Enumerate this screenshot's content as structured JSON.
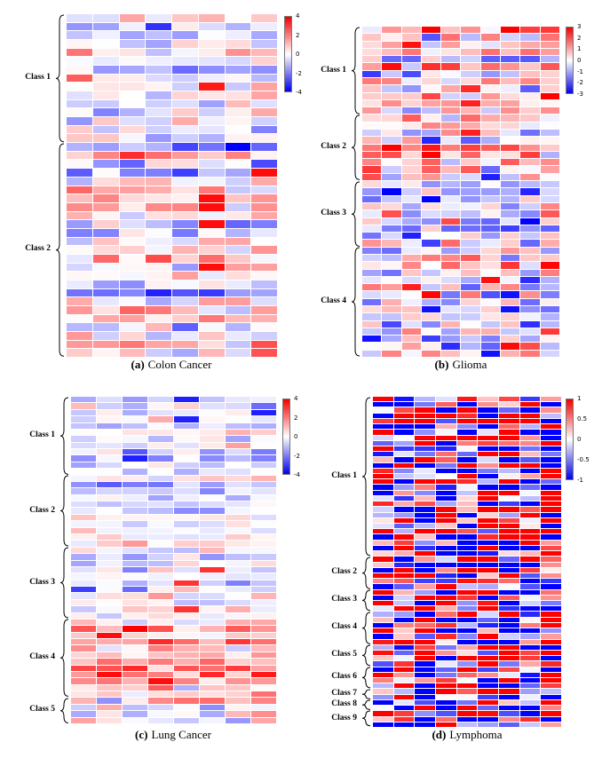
{
  "figure": {
    "background": "#ffffff",
    "colormap_positive": "#ff0000",
    "colormap_zero": "#ffffff",
    "colormap_negative": "#0000ff"
  },
  "chart_data": [
    {
      "type": "heatmap",
      "id": "a",
      "seed": 101,
      "caption_prefix": "(a)",
      "caption_title": "Colon Cancer",
      "columns": 8,
      "colormap": "blue-white-red",
      "value_range": [
        -4,
        4
      ],
      "colorbar_ticks": [
        "4",
        "2",
        "0",
        "-2",
        "-4"
      ],
      "classes": [
        {
          "label": "Class 1",
          "rows": 15,
          "bias": 0.0,
          "sigma": 0.85,
          "row_sigma": 0.55,
          "hot_p": 0.02,
          "hot_val": 3.6
        },
        {
          "label": "Class 2",
          "rows": 25,
          "bias": 0.15,
          "sigma": 0.95,
          "row_sigma": 0.95,
          "hot_p": 0.04,
          "hot_val": 3.8
        }
      ]
    },
    {
      "type": "heatmap",
      "id": "b",
      "seed": 202,
      "caption_prefix": "(b)",
      "caption_title": "Glioma",
      "columns": 10,
      "colormap": "blue-white-red",
      "value_range": [
        -3,
        3
      ],
      "colorbar_ticks": [
        "3",
        "2",
        "1",
        "0",
        "-1",
        "-2",
        "-3"
      ],
      "classes": [
        {
          "label": "Class 1",
          "rows": 12,
          "bias": 0.6,
          "sigma": 1.1,
          "row_sigma": 0.55,
          "hot_p": 0,
          "hot_val": 0
        },
        {
          "label": "Class 2",
          "rows": 9,
          "bias": 0.4,
          "sigma": 1.2,
          "row_sigma": 0.5,
          "hot_p": 0,
          "hot_val": 0
        },
        {
          "label": "Class 3",
          "rows": 9,
          "bias": -0.5,
          "sigma": 1.0,
          "row_sigma": 0.5,
          "hot_p": 0,
          "hot_val": 0
        },
        {
          "label": "Class 4",
          "rows": 15,
          "bias": -0.1,
          "sigma": 1.2,
          "row_sigma": 0.5,
          "hot_p": 0.02,
          "hot_val": -2.8
        }
      ]
    },
    {
      "type": "heatmap",
      "id": "c",
      "seed": 303,
      "caption_prefix": "(c)",
      "caption_title": "Lung Cancer",
      "columns": 8,
      "colormap": "blue-white-red",
      "value_range": [
        -4,
        4
      ],
      "colorbar_ticks": [
        "4",
        "2",
        "0",
        "-2",
        "-4"
      ],
      "classes": [
        {
          "label": "Class 1",
          "rows": 12,
          "bias": -0.3,
          "sigma": 0.75,
          "row_sigma": 0.5,
          "hot_p": 0.02,
          "hot_val": -3.5
        },
        {
          "label": "Class 2",
          "rows": 11,
          "bias": -0.4,
          "sigma": 0.6,
          "row_sigma": 0.4,
          "hot_p": 0,
          "hot_val": 0
        },
        {
          "label": "Class 3",
          "rows": 11,
          "bias": -0.2,
          "sigma": 0.8,
          "row_sigma": 0.6,
          "hot_p": 0.02,
          "hot_val": 3.2
        },
        {
          "label": "Class 4",
          "rows": 12,
          "bias": 1.1,
          "sigma": 1.0,
          "row_sigma": 0.6,
          "hot_p": 0.03,
          "hot_val": 3.8
        },
        {
          "label": "Class 5",
          "rows": 4,
          "bias": 0.4,
          "sigma": 1.1,
          "row_sigma": 0.5,
          "hot_p": 0.03,
          "hot_val": -3.5
        }
      ]
    },
    {
      "type": "heatmap",
      "id": "d",
      "seed": 404,
      "caption_prefix": "(d)",
      "caption_title": "Lymphoma",
      "columns": 9,
      "colormap": "blue-white-red",
      "value_range": [
        -1,
        1
      ],
      "colorbar_ticks": [
        "1",
        "0.5",
        "0",
        "-0.5",
        "-1"
      ],
      "classes": [
        {
          "label": "Class 1",
          "rows": 29,
          "bias": 0.0,
          "sigma": 1.6,
          "row_sigma": 0.4,
          "hot_p": 0,
          "hot_val": 0
        },
        {
          "label": "Class 2",
          "rows": 6,
          "bias": -0.2,
          "sigma": 1.6,
          "row_sigma": 0.4,
          "hot_p": 0,
          "hot_val": 0
        },
        {
          "label": "Class 3",
          "rows": 4,
          "bias": 0.2,
          "sigma": 1.6,
          "row_sigma": 0.4,
          "hot_p": 0,
          "hot_val": 0
        },
        {
          "label": "Class 4",
          "rows": 6,
          "bias": -0.1,
          "sigma": 1.6,
          "row_sigma": 0.4,
          "hot_p": 0,
          "hot_val": 0
        },
        {
          "label": "Class 5",
          "rows": 4,
          "bias": 0.2,
          "sigma": 1.6,
          "row_sigma": 0.4,
          "hot_p": 0,
          "hot_val": 0
        },
        {
          "label": "Class 6",
          "rows": 4,
          "bias": -0.2,
          "sigma": 1.6,
          "row_sigma": 0.4,
          "hot_p": 0,
          "hot_val": 0
        },
        {
          "label": "Class 7",
          "rows": 2,
          "bias": 0.3,
          "sigma": 1.6,
          "row_sigma": 0.4,
          "hot_p": 0,
          "hot_val": 0
        },
        {
          "label": "Class 8",
          "rows": 2,
          "bias": -0.3,
          "sigma": 1.6,
          "row_sigma": 0.4,
          "hot_p": 0,
          "hot_val": 0
        },
        {
          "label": "Class 9",
          "rows": 3,
          "bias": 0.3,
          "sigma": 1.6,
          "row_sigma": 0.4,
          "hot_p": 0,
          "hot_val": 0
        }
      ]
    }
  ]
}
